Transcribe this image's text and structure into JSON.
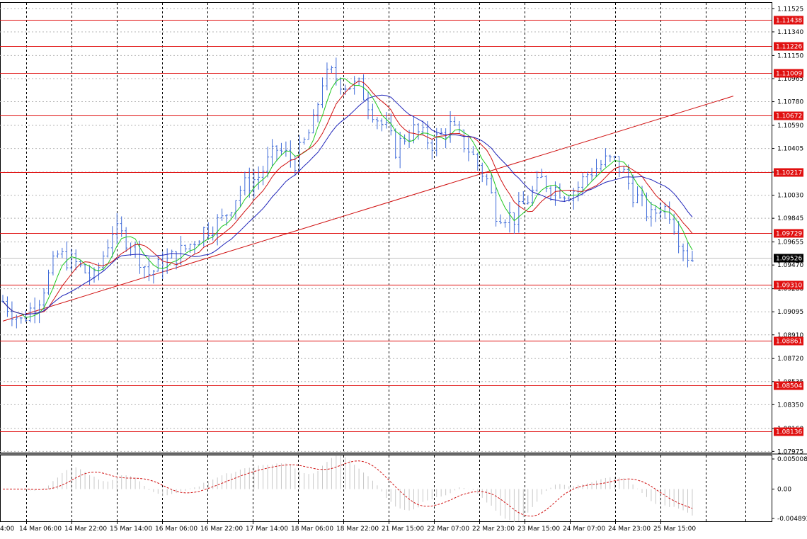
{
  "chart_data": {
    "type": "candlestick",
    "price_axis": {
      "ylim": [
        1.0796,
        1.1155
      ],
      "tick_labels": [
        "1.11525",
        "1.11340",
        "1.11150",
        "1.10965",
        "1.10780",
        "1.10590",
        "1.10405",
        "1.10215",
        "1.10030",
        "1.09845",
        "1.09655",
        "1.09470",
        "1.09280",
        "1.09095",
        "1.08910",
        "1.08720",
        "1.08535",
        "1.08350",
        "1.08160",
        "1.07975"
      ],
      "tick_values": [
        1.11525,
        1.1134,
        1.1115,
        1.10965,
        1.1078,
        1.1059,
        1.10405,
        1.10215,
        1.1003,
        1.09845,
        1.09655,
        1.0947,
        1.0928,
        1.09095,
        1.0891,
        1.0872,
        1.08535,
        1.0835,
        1.0816,
        1.07975
      ]
    },
    "time_axis": {
      "tick_labels": [
        "14 Mar 06:00",
        "14 Mar 22:00",
        "15 Mar 14:00",
        "16 Mar 06:00",
        "16 Mar 22:00",
        "17 Mar 14:00",
        "18 Mar 06:00",
        "18 Mar 22:00",
        "21 Mar 15:00",
        "22 Mar 07:00",
        "22 Mar 23:00",
        "23 Mar 15:00",
        "24 Mar 07:00",
        "24 Mar 23:00",
        "25 Mar 15:00"
      ],
      "first_label_fragment": "4:00"
    },
    "levels": [
      {
        "label": "1.11438",
        "value": 1.11438
      },
      {
        "label": "1.11226",
        "value": 1.11226
      },
      {
        "label": "1.11009",
        "value": 1.11009
      },
      {
        "label": "1.10672",
        "value": 1.10672
      },
      {
        "label": "1.10217",
        "value": 1.10217
      },
      {
        "label": "1.09729",
        "value": 1.09729
      },
      {
        "label": "1.09310",
        "value": 1.0931
      },
      {
        "label": "1.08861",
        "value": 1.08861
      },
      {
        "label": "1.08504",
        "value": 1.08504
      },
      {
        "label": "1.08136",
        "value": 1.08136
      }
    ],
    "current_price": {
      "label": "1.09526",
      "value": 1.09526
    },
    "trendline": {
      "from": {
        "bar": 0,
        "price": 1.0902
      },
      "to": {
        "bar": 160,
        "price": 1.10825
      }
    },
    "bar_count": 152,
    "close_anchors": [
      [
        0,
        1.0918
      ],
      [
        4,
        1.0902
      ],
      [
        8,
        1.0921
      ],
      [
        12,
        1.0955
      ],
      [
        16,
        1.0948
      ],
      [
        20,
        1.0935
      ],
      [
        24,
        1.0975
      ],
      [
        28,
        1.0966
      ],
      [
        32,
        1.094
      ],
      [
        36,
        1.095
      ],
      [
        40,
        1.096
      ],
      [
        44,
        1.0975
      ],
      [
        48,
        1.0983
      ],
      [
        52,
        1.1008
      ],
      [
        56,
        1.1018
      ],
      [
        60,
        1.104
      ],
      [
        64,
        1.103
      ],
      [
        66,
        1.1045
      ],
      [
        68,
        1.106
      ],
      [
        70,
        1.1095
      ],
      [
        72,
        1.11
      ],
      [
        75,
        1.1092
      ],
      [
        78,
        1.109
      ],
      [
        82,
        1.1065
      ],
      [
        84,
        1.1055
      ],
      [
        86,
        1.104
      ],
      [
        88,
        1.105
      ],
      [
        90,
        1.1055
      ],
      [
        94,
        1.1045
      ],
      [
        98,
        1.1058
      ],
      [
        102,
        1.104
      ],
      [
        106,
        1.1015
      ],
      [
        108,
        1.099
      ],
      [
        112,
        1.0985
      ],
      [
        115,
        1.1
      ],
      [
        118,
        1.1015
      ],
      [
        120,
        1.101
      ],
      [
        124,
        1.1005
      ],
      [
        126,
        1.101
      ],
      [
        128,
        1.102
      ],
      [
        130,
        1.1025
      ],
      [
        132,
        1.103
      ],
      [
        134,
        1.103
      ],
      [
        136,
        1.102
      ],
      [
        138,
        1.1005
      ],
      [
        140,
        1.0995
      ],
      [
        142,
        1.0985
      ],
      [
        144,
        1.0995
      ],
      [
        146,
        1.099
      ],
      [
        148,
        1.097
      ],
      [
        150,
        1.0955
      ],
      [
        151,
        1.0952
      ]
    ],
    "indicator": {
      "ylim": [
        -0.004893,
        0.005008
      ],
      "tick_labels": [
        "0.005008",
        "0.00",
        "-0.004893"
      ],
      "tick_values": [
        0.005008,
        0.0,
        -0.004893
      ]
    },
    "colors": {
      "candles": "#3f6bd8",
      "ma_fast": "#1ec81e",
      "ma_mid": "#d01010",
      "ma_slow": "#1d22b8",
      "levels": "#e01010",
      "histogram": "#c8c8c8",
      "signal": "#d01010"
    },
    "grid": true
  }
}
